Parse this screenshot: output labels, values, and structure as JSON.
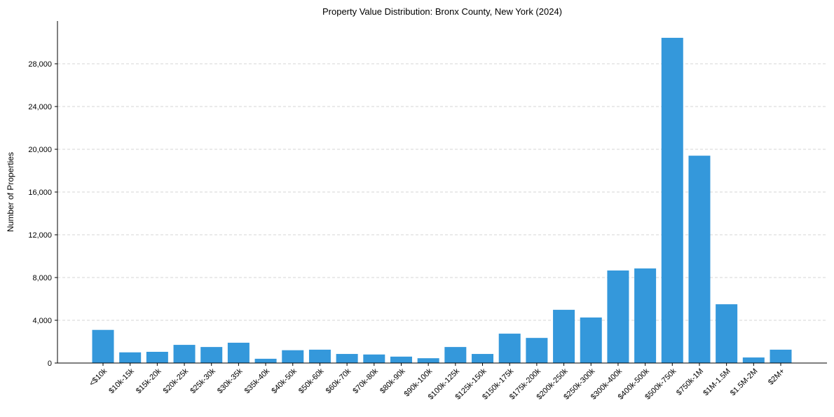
{
  "chart_data": {
    "type": "bar",
    "title": "Property Value Distribution: Bronx County, New York (2024)",
    "xlabel": "",
    "ylabel": "Number of Properties",
    "ylim": [
      0,
      32000
    ],
    "yticks": [
      0,
      4000,
      8000,
      12000,
      16000,
      20000,
      24000,
      28000
    ],
    "ytick_labels": [
      "0",
      "4,000",
      "8,000",
      "12,000",
      "16,000",
      "20,000",
      "24,000",
      "28,000"
    ],
    "grid": "y-dashed",
    "bar_color": "#3498db",
    "categories": [
      "<$10k",
      "$10k-15k",
      "$15k-20k",
      "$20k-25k",
      "$25k-30k",
      "$30k-35k",
      "$35k-40k",
      "$40k-50k",
      "$50k-60k",
      "$60k-70k",
      "$70k-80k",
      "$80k-90k",
      "$90k-100k",
      "$100k-125k",
      "$125k-150k",
      "$150k-175k",
      "$175k-200k",
      "$200k-250k",
      "$250k-300k",
      "$300k-400k",
      "$400k-500k",
      "$500k-750k",
      "$750k-1M",
      "$1M-1.5M",
      "$1.5M-2M",
      "$2M+"
    ],
    "values": [
      3100,
      1000,
      1050,
      1700,
      1500,
      1900,
      400,
      1200,
      1250,
      850,
      800,
      600,
      450,
      1500,
      850,
      2750,
      2350,
      4980,
      4260,
      8660,
      8850,
      30430,
      19400,
      5500,
      520,
      1250
    ]
  }
}
